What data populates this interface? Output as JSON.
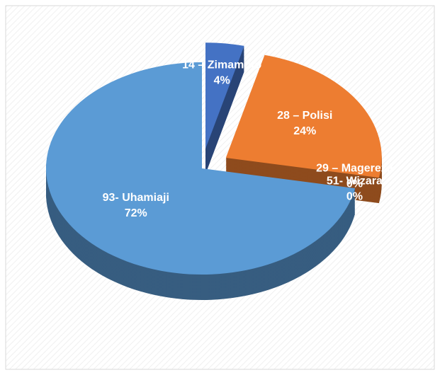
{
  "chart_data": {
    "type": "pie",
    "categories": [
      "14 – Zimamoto",
      "28 – Polisi",
      "29 – Magereza",
      "51- Wizara",
      "93- Uhamiaji"
    ],
    "values": [
      4,
      24,
      0,
      0,
      72
    ],
    "value_labels": [
      "4%",
      "24%",
      "0%",
      "0%",
      "72%"
    ],
    "colors": [
      "#4472c4",
      "#ed7d31",
      "#843c0c",
      "#7f6000",
      "#5b9bd5"
    ]
  }
}
